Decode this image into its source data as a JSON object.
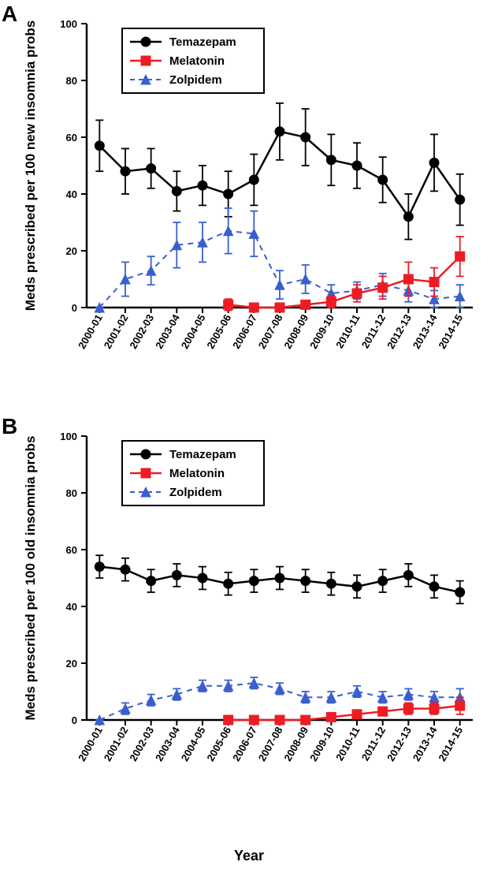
{
  "figure": {
    "panel_labels": {
      "A": "A",
      "B": "B"
    },
    "xlabel": "Year",
    "xlabel_fontsize": 18,
    "panel_label_fontsize": 28,
    "background_color": "#ffffff",
    "axis_color": "#000000",
    "axis_linewidth": 2.5,
    "tick_linewidth": 2,
    "tick_fontsize": 13,
    "ylabel_fontsize": 17,
    "categories": [
      "2000-01",
      "2001-02",
      "2002-03",
      "2003-04",
      "2004-05",
      "2005-06",
      "2006-07",
      "2007-08",
      "2008-09",
      "2009-10",
      "2010-11",
      "2011-12",
      "2012-13",
      "2013-14",
      "2014-15"
    ],
    "ylim": [
      0,
      100
    ],
    "ytick_step": 20,
    "legend": {
      "border_color": "#000000",
      "border_width": 2,
      "text_fontsize": 15,
      "items": [
        "Temazepam",
        "Melatonin",
        "Zolpidem"
      ]
    },
    "series_style": {
      "Temazepam": {
        "color": "#000000",
        "marker": "circle",
        "marker_size": 6,
        "linewidth": 2.5,
        "dash": "solid"
      },
      "Melatonin": {
        "color": "#ed1c24",
        "marker": "square",
        "marker_size": 6,
        "linewidth": 2.5,
        "dash": "solid"
      },
      "Zolpidem": {
        "color": "#3a5fcd",
        "marker": "triangle",
        "marker_size": 6,
        "linewidth": 2,
        "dash": "dashed"
      }
    },
    "panels": {
      "A": {
        "ylabel": "Meds prescribed per 100 new insomnia probs",
        "series": {
          "Temazepam": {
            "y": [
              57,
              48,
              49,
              41,
              43,
              40,
              45,
              62,
              60,
              52,
              50,
              45,
              32,
              51,
              38
            ],
            "err": [
              9,
              8,
              7,
              7,
              7,
              8,
              9,
              10,
              10,
              9,
              8,
              8,
              8,
              10,
              9
            ]
          },
          "Melatonin": {
            "y": [
              null,
              null,
              null,
              null,
              null,
              1,
              0,
              0,
              1,
              2,
              5,
              7,
              10,
              9,
              18
            ],
            "err": [
              null,
              null,
              null,
              null,
              null,
              2,
              1,
              1,
              1,
              2,
              3,
              4,
              6,
              5,
              7
            ]
          },
          "Zolpidem": {
            "y": [
              0,
              10,
              13,
              22,
              23,
              27,
              26,
              8,
              10,
              5,
              6,
              8,
              6,
              3,
              4
            ],
            "err": [
              0,
              6,
              5,
              8,
              7,
              8,
              8,
              5,
              5,
              3,
              3,
              4,
              4,
              3,
              4
            ]
          }
        }
      },
      "B": {
        "ylabel": "Meds prescribed per 100 old insomnia probs",
        "series": {
          "Temazepam": {
            "y": [
              54,
              53,
              49,
              51,
              50,
              48,
              49,
              50,
              49,
              48,
              47,
              49,
              51,
              47,
              45
            ],
            "err": [
              4,
              4,
              4,
              4,
              4,
              4,
              4,
              4,
              4,
              4,
              4,
              4,
              4,
              4,
              4
            ]
          },
          "Melatonin": {
            "y": [
              null,
              null,
              null,
              null,
              null,
              0,
              0,
              0,
              0,
              1,
              2,
              3,
              4,
              4,
              5
            ],
            "err": [
              null,
              null,
              null,
              null,
              null,
              1,
              1,
              1,
              1,
              1,
              1,
              1,
              2,
              2,
              3
            ]
          },
          "Zolpidem": {
            "y": [
              0,
              4,
              7,
              9,
              12,
              12,
              13,
              11,
              8,
              8,
              10,
              8,
              9,
              8,
              8
            ],
            "err": [
              0,
              2,
              2,
              2,
              2,
              2,
              2,
              2,
              2,
              2,
              2,
              2,
              2,
              2,
              3
            ]
          }
        }
      }
    }
  }
}
